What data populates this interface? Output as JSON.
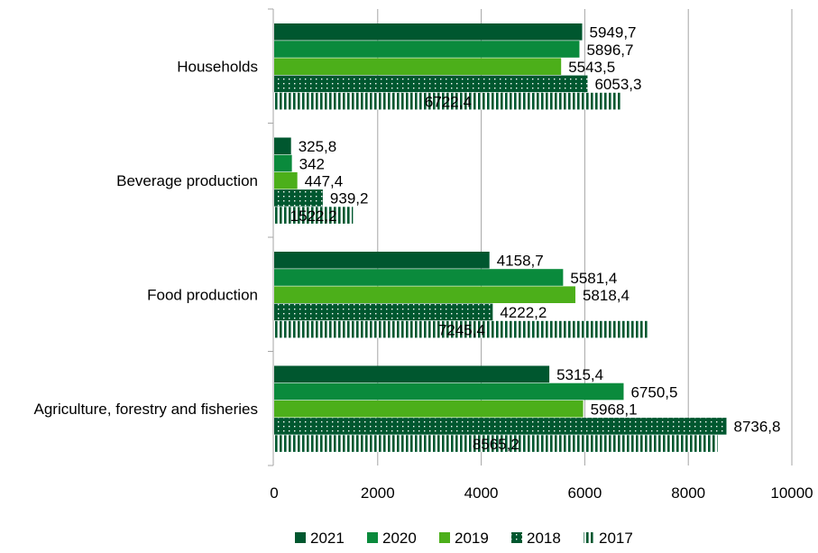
{
  "chart_data": {
    "type": "bar",
    "orientation": "horizontal",
    "categories": [
      "Households",
      "Beverage production",
      "Food production",
      "Agriculture, forestry and fisheries"
    ],
    "series": [
      {
        "name": "2021",
        "values": [
          5949.7,
          325.8,
          4158.7,
          5315.4
        ],
        "labels": [
          "5949,7",
          "325,8",
          "4158,7",
          "5315,4"
        ],
        "color": "#00572f",
        "pattern": "solid"
      },
      {
        "name": "2020",
        "values": [
          5896.7,
          342,
          5581.4,
          6750.5
        ],
        "labels": [
          "5896,7",
          "342",
          "5581,4",
          "6750,5"
        ],
        "color": "#0a8a3c",
        "pattern": "solid"
      },
      {
        "name": "2019",
        "values": [
          5543.5,
          447.4,
          5818.4,
          5968.1
        ],
        "labels": [
          "5543,5",
          "447,4",
          "5818,4",
          "5968,1"
        ],
        "color": "#4caf1a",
        "pattern": "solid"
      },
      {
        "name": "2018",
        "values": [
          6053.3,
          939.2,
          4222.2,
          8736.8
        ],
        "labels": [
          "6053,3",
          "939,2",
          "4222,2",
          "8736,8"
        ],
        "color": "#00572f",
        "pattern": "dots"
      },
      {
        "name": "2017",
        "values": [
          6722.4,
          1522.2,
          7245.4,
          8565.2
        ],
        "labels": [
          "6722,4",
          "1522,2",
          "7245,4",
          "8565,2"
        ],
        "color": "#00572f",
        "pattern": "vstripes"
      }
    ],
    "xlim": [
      0,
      10000
    ],
    "xticks": [
      0,
      2000,
      4000,
      6000,
      8000,
      10000
    ],
    "xtick_labels": [
      "0",
      "2000",
      "4000",
      "6000",
      "8000",
      "10000"
    ],
    "grid": "vertical",
    "legend_position": "bottom"
  }
}
